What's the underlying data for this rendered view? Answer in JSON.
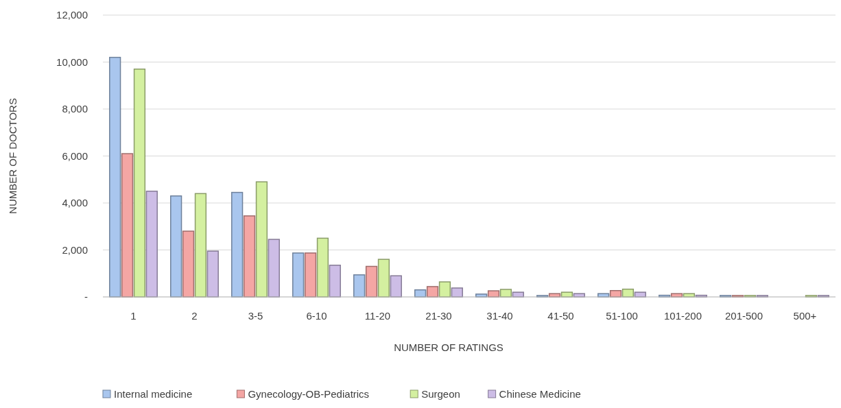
{
  "chart_data": {
    "type": "bar",
    "xlabel": "NUMBER OF RATINGS",
    "ylabel": "NUMBER OF DOCTORS",
    "categories": [
      "1",
      "2",
      "3-5",
      "6-10",
      "11-20",
      "21-30",
      "31-40",
      "41-50",
      "51-100",
      "101-200",
      "201-500",
      "500+"
    ],
    "series": [
      {
        "name": "Internal medicine",
        "color": "#a9c6ee",
        "values": [
          10200,
          4300,
          4450,
          1870,
          940,
          300,
          120,
          60,
          140,
          70,
          60,
          0
        ]
      },
      {
        "name": "Gynecology-OB-Pediatrics",
        "color": "#f4a6a4",
        "values": [
          6100,
          2800,
          3450,
          1870,
          1300,
          440,
          260,
          140,
          270,
          140,
          60,
          0
        ]
      },
      {
        "name": "Surgeon",
        "color": "#d4f0a0",
        "values": [
          9700,
          4400,
          4900,
          2500,
          1600,
          640,
          320,
          200,
          330,
          140,
          60,
          60
        ]
      },
      {
        "name": "Chinese Medicine",
        "color": "#cdbde6",
        "values": [
          4500,
          1950,
          2450,
          1350,
          900,
          380,
          200,
          140,
          200,
          70,
          60,
          60
        ]
      }
    ],
    "ylim": [
      0,
      12000
    ],
    "yticks": [
      {
        "value": 0,
        "label": "-"
      },
      {
        "value": 2000,
        "label": "2,000"
      },
      {
        "value": 4000,
        "label": "4,000"
      },
      {
        "value": 6000,
        "label": "6,000"
      },
      {
        "value": 8000,
        "label": "8,000"
      },
      {
        "value": 10000,
        "label": "10,000"
      },
      {
        "value": 12000,
        "label": "12,000"
      }
    ],
    "grid": "y",
    "legend": "bottom"
  }
}
